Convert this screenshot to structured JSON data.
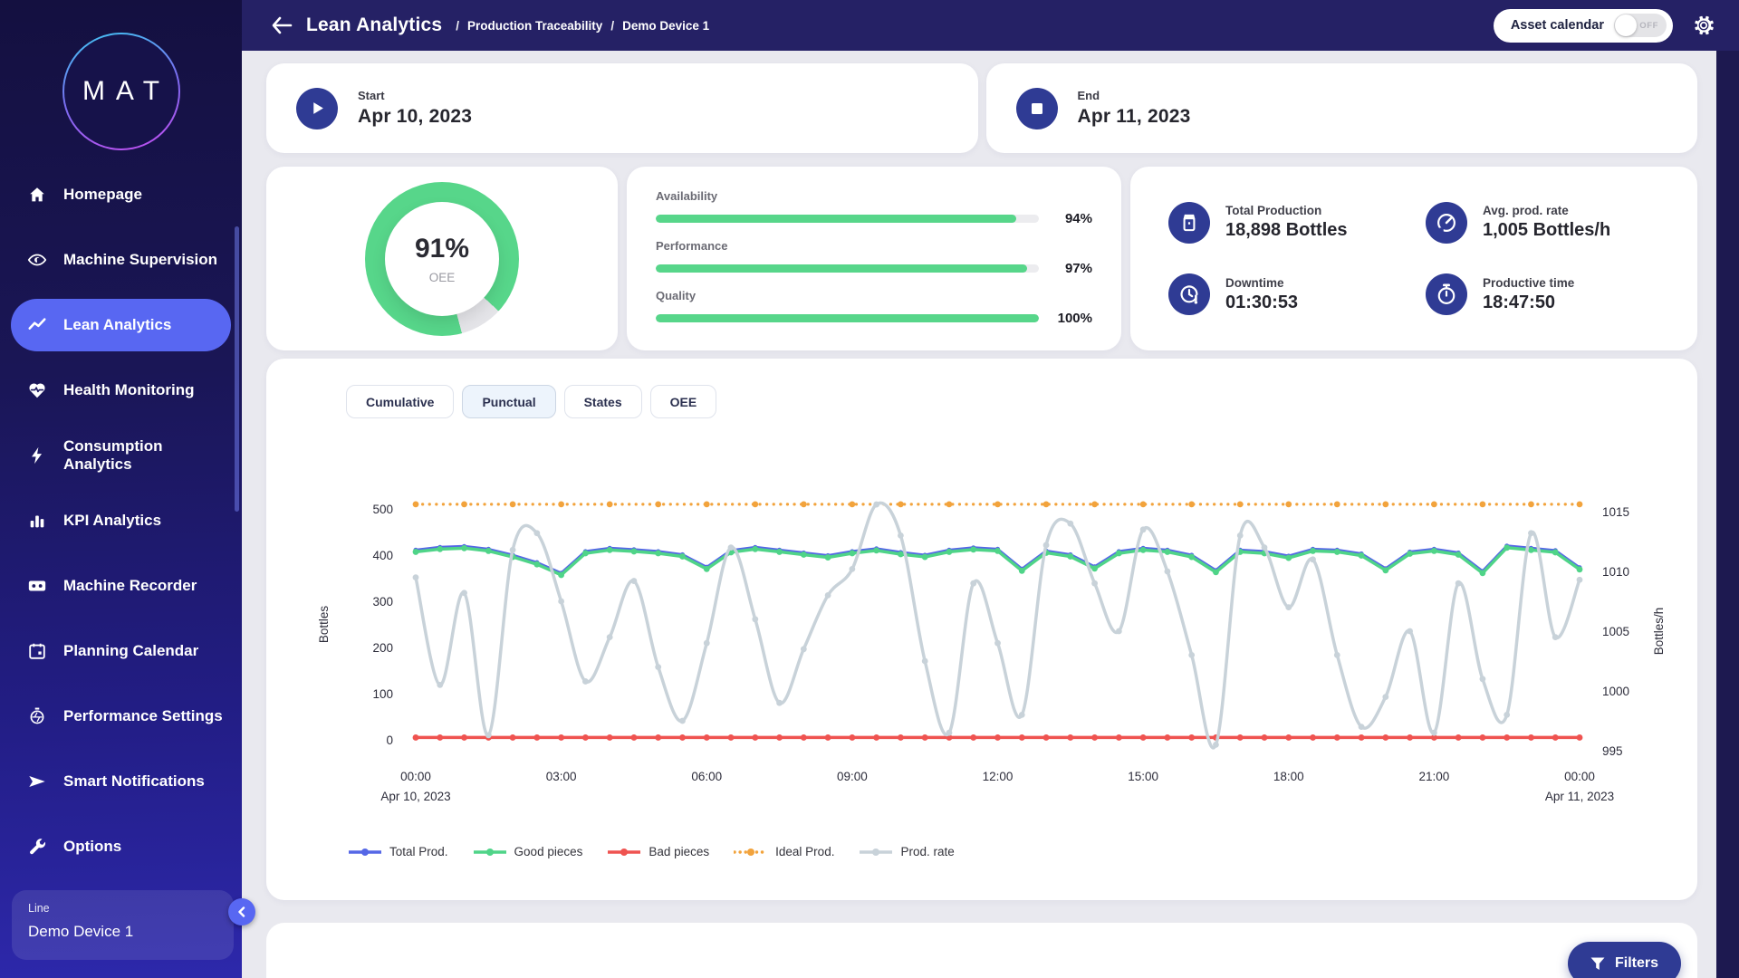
{
  "header": {
    "title": "Lean Analytics",
    "breadcrumbs": [
      "Production Traceability",
      "Demo Device 1"
    ],
    "asset_calendar": {
      "label": "Asset calendar",
      "state": "OFF"
    }
  },
  "sidebar": {
    "logo_text": "MAT",
    "items": [
      {
        "label": "Homepage",
        "icon": "home-icon",
        "active": false
      },
      {
        "label": "Machine Supervision",
        "icon": "eye-icon",
        "active": false
      },
      {
        "label": "Lean Analytics",
        "icon": "trend-icon",
        "active": true
      },
      {
        "label": "Health Monitoring",
        "icon": "heart-icon",
        "active": false
      },
      {
        "label": "Consumption Analytics",
        "icon": "bolt-icon",
        "active": false
      },
      {
        "label": "KPI Analytics",
        "icon": "bars-icon",
        "active": false
      },
      {
        "label": "Machine Recorder",
        "icon": "cassette-icon",
        "active": false
      },
      {
        "label": "Planning Calendar",
        "icon": "calendar-icon",
        "active": false
      },
      {
        "label": "Performance Settings",
        "icon": "stopwatch-gear-icon",
        "active": false
      },
      {
        "label": "Smart Notifications",
        "icon": "send-icon",
        "active": false
      },
      {
        "label": "Options",
        "icon": "wrench-icon",
        "active": false
      }
    ],
    "line_selector": {
      "label": "Line",
      "value": "Demo Device 1"
    }
  },
  "summary": {
    "start": {
      "label": "Start",
      "date": "Apr 10, 2023"
    },
    "end": {
      "label": "End",
      "date": "Apr 11, 2023"
    }
  },
  "oee": {
    "value": "91%",
    "percent": 91,
    "label": "OEE",
    "metrics": [
      {
        "label": "Availability",
        "percent": 94,
        "display": "94%"
      },
      {
        "label": "Performance",
        "percent": 97,
        "display": "97%"
      },
      {
        "label": "Quality",
        "percent": 100,
        "display": "100%"
      }
    ]
  },
  "stats": [
    {
      "label": "Total Production",
      "value": "18,898 Bottles",
      "icon": "production-icon"
    },
    {
      "label": "Avg. prod. rate",
      "value": "1,005 Bottles/h",
      "icon": "speedometer-icon"
    },
    {
      "label": "Downtime",
      "value": "01:30:53",
      "icon": "downtime-clock-icon"
    },
    {
      "label": "Productive time",
      "value": "18:47:50",
      "icon": "stopwatch-icon"
    }
  ],
  "tabs": [
    {
      "label": "Cumulative",
      "active": false
    },
    {
      "label": "Punctual",
      "active": true
    },
    {
      "label": "States",
      "active": false
    },
    {
      "label": "OEE",
      "active": false
    }
  ],
  "chart_data": {
    "type": "line",
    "ylabel_left": "Bottles",
    "ylabel_right": "Bottles/h",
    "yticks_left": [
      0,
      100,
      200,
      300,
      400,
      500
    ],
    "yticks_right": [
      995,
      1000,
      1005,
      1010,
      1015
    ],
    "ylim_left": [
      0,
      530
    ],
    "ylim_right": [
      994,
      1016.5
    ],
    "x_unit": "hours",
    "x": [
      0,
      0.5,
      1,
      1.5,
      2,
      2.5,
      3,
      3.5,
      4,
      4.5,
      5,
      5.5,
      6,
      6.5,
      7,
      7.5,
      8,
      8.5,
      9,
      9.5,
      10,
      10.5,
      11,
      11.5,
      12,
      12.5,
      13,
      13.5,
      14,
      14.5,
      15,
      15.5,
      16,
      16.5,
      17,
      17.5,
      18,
      18.5,
      19,
      19.5,
      20,
      20.5,
      21,
      21.5,
      22,
      22.5,
      23,
      23.5,
      24
    ],
    "x_ticks": [
      {
        "t": 0,
        "label": "00:00",
        "sublabel": "Apr 10, 2023"
      },
      {
        "t": 3,
        "label": "03:00"
      },
      {
        "t": 6,
        "label": "06:00"
      },
      {
        "t": 9,
        "label": "09:00"
      },
      {
        "t": 12,
        "label": "12:00"
      },
      {
        "t": 15,
        "label": "15:00"
      },
      {
        "t": 18,
        "label": "18:00"
      },
      {
        "t": 21,
        "label": "21:00"
      },
      {
        "t": 24,
        "label": "00:00",
        "sublabel": "Apr 11, 2023"
      }
    ],
    "grid": false,
    "legend_position": "bottom-left",
    "series": [
      {
        "name": "Total Prod.",
        "color": "#5567e6",
        "axis": "left",
        "style": "solid",
        "values": [
          411,
          417,
          419,
          413,
          400,
          384,
          361,
          408,
          415,
          412,
          408,
          401,
          374,
          410,
          417,
          411,
          405,
          399,
          408,
          414,
          406,
          400,
          411,
          416,
          413,
          370,
          409,
          401,
          375,
          408,
          415,
          411,
          400,
          367,
          411,
          408,
          398,
          413,
          411,
          403,
          371,
          407,
          413,
          405,
          365,
          420,
          415,
          410,
          373
        ]
      },
      {
        "name": "Good pieces",
        "color": "#4fd488",
        "axis": "left",
        "style": "solid",
        "values": [
          407,
          413,
          415,
          409,
          396,
          380,
          357,
          404,
          411,
          408,
          404,
          397,
          370,
          406,
          413,
          407,
          401,
          395,
          404,
          410,
          402,
          396,
          407,
          412,
          409,
          366,
          405,
          397,
          371,
          404,
          411,
          407,
          396,
          363,
          407,
          404,
          394,
          409,
          407,
          399,
          367,
          403,
          409,
          401,
          361,
          416,
          411,
          406,
          369
        ]
      },
      {
        "name": "Bad pieces",
        "color": "#ef5350",
        "axis": "left",
        "style": "solid",
        "values": [
          5,
          5,
          5,
          5,
          5,
          5,
          5,
          5,
          5,
          5,
          5,
          5,
          5,
          5,
          5,
          5,
          5,
          5,
          5,
          5,
          5,
          5,
          5,
          5,
          5,
          5,
          5,
          5,
          5,
          5,
          5,
          5,
          5,
          5,
          5,
          5,
          5,
          5,
          5,
          5,
          5,
          5,
          5,
          5,
          5,
          5,
          5,
          5,
          5
        ]
      },
      {
        "name": "Ideal Prod.",
        "color": "#f2a33c",
        "axis": "left",
        "style": "dotted",
        "values": [
          510,
          510,
          510,
          510,
          510,
          510,
          510,
          510,
          510,
          510,
          510,
          510,
          510,
          510,
          510,
          510,
          510,
          510,
          510,
          510,
          510,
          510,
          510,
          510,
          510,
          510,
          510,
          510,
          510,
          510,
          510,
          510,
          510,
          510,
          510,
          510,
          510,
          510,
          510,
          510,
          510,
          510,
          510,
          510,
          510,
          510,
          510,
          510,
          510
        ]
      },
      {
        "name": "Prod. rate",
        "color": "#c8d2d9",
        "axis": "right",
        "style": "smooth",
        "values": [
          1009.5,
          1000.5,
          1008.2,
          996.3,
          1011.8,
          1013.2,
          1007.5,
          1000.8,
          1004.5,
          1009.2,
          1002,
          997.5,
          1004,
          1012,
          1006,
          999,
          1003.5,
          1008,
          1010.2,
          1015.6,
          1013,
          1002.5,
          996.5,
          1009,
          1004,
          998,
          1012.2,
          1014,
          1009,
          1005,
          1013.5,
          1010,
          1003,
          995.5,
          1013,
          1012,
          1007,
          1011,
          1003,
          997,
          999.5,
          1005,
          996.5,
          1009,
          1001,
          998,
          1013.2,
          1004.5,
          1009.3
        ]
      }
    ]
  },
  "actions": {
    "filters_label": "Filters"
  },
  "colors": {
    "accent": "#5867f2",
    "icon_circle": "#2f3b94",
    "success": "#57d68a",
    "header_bg": "#252165"
  }
}
